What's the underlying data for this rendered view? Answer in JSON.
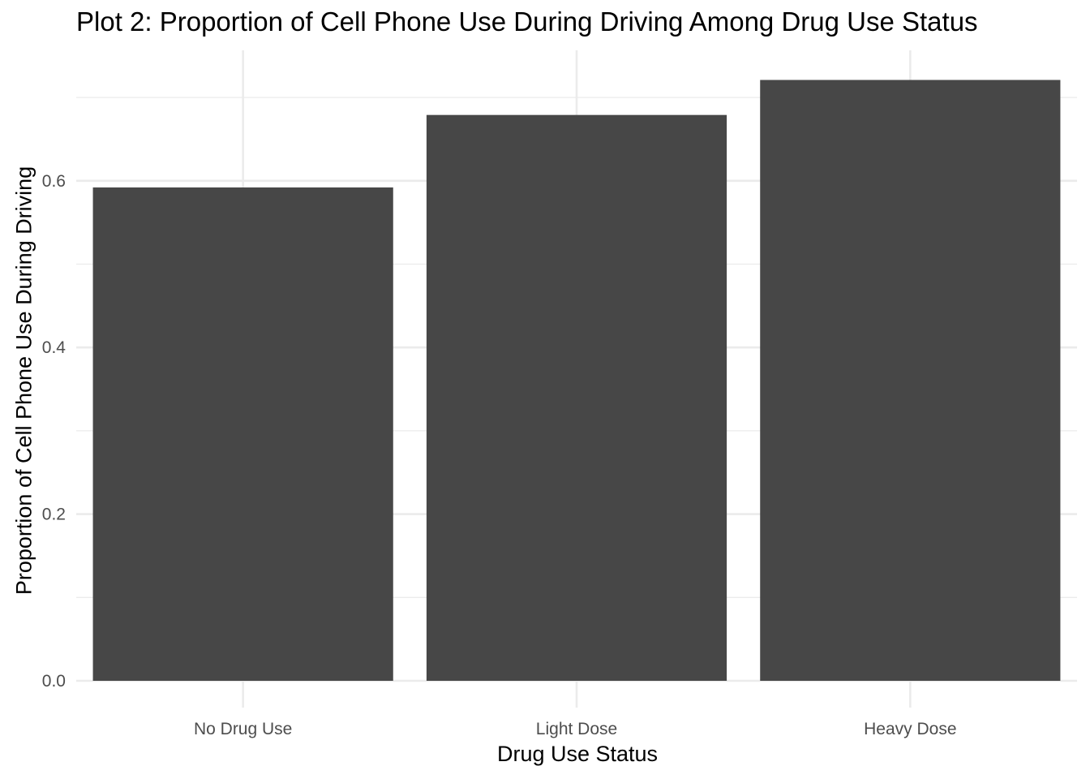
{
  "chart_data": {
    "type": "bar",
    "title": "Plot 2: Proportion of Cell Phone Use During Driving Among Drug Use Status",
    "xlabel": "Drug Use Status",
    "ylabel": "Proportion of Cell Phone Use During Driving",
    "categories": [
      "No Drug Use",
      "Light Dose",
      "Heavy Dose"
    ],
    "values": [
      0.592,
      0.679,
      0.721
    ],
    "ylim": [
      0,
      0.75
    ],
    "yticks": [
      0.0,
      0.2,
      0.4,
      0.6
    ],
    "ytick_labels": [
      "0.0",
      "0.2",
      "0.4",
      "0.6"
    ],
    "grid": true,
    "legend": "none",
    "bar_color": "#474747",
    "grid_color": "#ebebeb",
    "tick_label_color": "#4d4d4d",
    "background_color": "#ffffff"
  }
}
